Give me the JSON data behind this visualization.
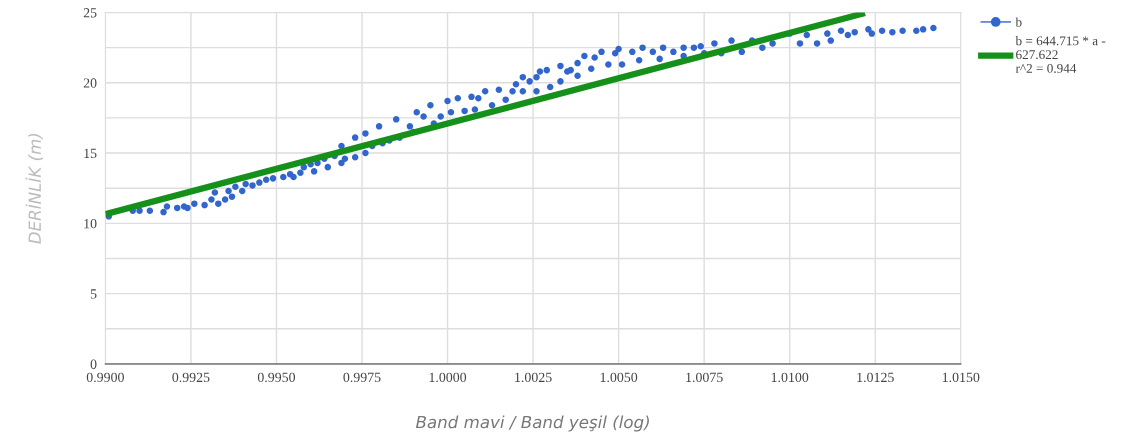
{
  "chart_data": {
    "type": "scatter",
    "xlabel": "Band mavi / Band yeşil (log)",
    "ylabel": "DERİNLİK (m)",
    "xlim": [
      0.99,
      1.015
    ],
    "xticks": [
      {
        "value": 0.99,
        "label": "0.9900"
      },
      {
        "value": 0.9925,
        "label": "0.9925"
      },
      {
        "value": 0.995,
        "label": "0.9950"
      },
      {
        "value": 0.9975,
        "label": "0.9975"
      },
      {
        "value": 1.0,
        "label": "1.0000"
      },
      {
        "value": 1.0025,
        "label": "1.0025"
      },
      {
        "value": 1.005,
        "label": "1.0050"
      },
      {
        "value": 1.0075,
        "label": "1.0075"
      },
      {
        "value": 1.01,
        "label": "1.0100"
      },
      {
        "value": 1.0125,
        "label": "1.0125"
      },
      {
        "value": 1.015,
        "label": "1.0150"
      }
    ],
    "ylim": [
      0,
      25
    ],
    "yticks": [
      0,
      {
        "value": 2.5,
        "label": null
      },
      5,
      {
        "value": 7.5,
        "label": null
      },
      10,
      {
        "value": 12.5,
        "label": null
      },
      15,
      {
        "value": 17.5,
        "label": null
      },
      20,
      {
        "value": 22.5,
        "label": null
      },
      25
    ],
    "grid": true,
    "legend": "top right",
    "marker": "circle",
    "series": [
      {
        "name": "b",
        "color": "#3366cc",
        "x": [
          0.9901,
          0.9908,
          0.991,
          0.9913,
          0.9917,
          0.9918,
          0.9921,
          0.9923,
          0.9924,
          0.9926,
          0.9929,
          0.9931,
          0.9932,
          0.9933,
          0.9935,
          0.9936,
          0.9937,
          0.9938,
          0.994,
          0.9941,
          0.9943,
          0.9945,
          0.9947,
          0.9949,
          0.9952,
          0.9954,
          0.9955,
          0.9957,
          0.9958,
          0.996,
          0.9961,
          0.9962,
          0.9964,
          0.9965,
          0.9967,
          0.9969,
          0.9969,
          0.997,
          0.9973,
          0.9973,
          0.9976,
          0.9976,
          0.9978,
          0.998,
          0.9981,
          0.9983,
          0.9985,
          0.9986,
          0.9989,
          0.999,
          0.9991,
          0.9993,
          0.9995,
          0.9996,
          0.9998,
          1.0,
          1.0001,
          1.0003,
          1.0005,
          1.0007,
          1.0008,
          1.0009,
          1.0011,
          1.0013,
          1.0015,
          1.0017,
          1.0019,
          1.002,
          1.0022,
          1.0022,
          1.0024,
          1.0026,
          1.0026,
          1.0027,
          1.0029,
          1.003,
          1.0033,
          1.0033,
          1.0035,
          1.0036,
          1.0038,
          1.0038,
          1.004,
          1.0042,
          1.0043,
          1.0045,
          1.0047,
          1.0049,
          1.005,
          1.0051,
          1.0054,
          1.0056,
          1.0057,
          1.006,
          1.0062,
          1.0063,
          1.0066,
          1.0069,
          1.0069,
          1.0072,
          1.0074,
          1.0075,
          1.0078,
          1.008,
          1.0083,
          1.0086,
          1.0089,
          1.0092,
          1.0095,
          1.01,
          1.0103,
          1.0105,
          1.0108,
          1.0111,
          1.0112,
          1.0115,
          1.0117,
          1.0119,
          1.0123,
          1.0124,
          1.0127,
          1.013,
          1.0133,
          1.0137,
          1.0139,
          1.0142
        ],
        "values": [
          10.5,
          10.9,
          10.9,
          10.9,
          10.8,
          11.2,
          11.1,
          11.2,
          11.1,
          11.4,
          11.3,
          11.7,
          12.2,
          11.4,
          11.7,
          12.3,
          11.9,
          12.6,
          12.3,
          12.8,
          12.7,
          12.9,
          13.1,
          13.2,
          13.3,
          13.5,
          13.3,
          13.6,
          14.0,
          14.2,
          13.7,
          14.3,
          14.6,
          14.0,
          14.8,
          14.3,
          15.5,
          14.6,
          16.1,
          14.7,
          15.0,
          16.4,
          15.5,
          16.9,
          15.7,
          15.9,
          17.4,
          16.1,
          16.9,
          16.5,
          17.9,
          17.6,
          18.4,
          17.1,
          17.6,
          18.7,
          17.9,
          18.9,
          18.0,
          19.0,
          18.1,
          18.9,
          19.4,
          18.4,
          19.5,
          18.8,
          19.4,
          19.9,
          19.4,
          20.4,
          20.1,
          20.4,
          19.4,
          20.8,
          20.9,
          19.7,
          21.2,
          20.1,
          20.8,
          20.9,
          21.4,
          20.5,
          21.9,
          21.0,
          21.8,
          22.2,
          21.3,
          22.1,
          22.4,
          21.3,
          22.2,
          21.6,
          22.5,
          22.2,
          21.7,
          22.5,
          22.2,
          21.9,
          22.5,
          22.5,
          22.6,
          22.1,
          22.8,
          22.1,
          23.0,
          22.2,
          23.0,
          22.5,
          22.8,
          23.5,
          22.8,
          23.4,
          22.8,
          23.5,
          23.0,
          23.7,
          23.4,
          23.6,
          23.8,
          23.5,
          23.7,
          23.6,
          23.7,
          23.7,
          23.8,
          23.9
        ]
      },
      {
        "name": "b = 644.715 * a -\n627.622\nr^2 = 0.944",
        "type": "line",
        "color": "#15901a",
        "marker": "none",
        "x": [
          0.99,
          1.0122
        ],
        "values": [
          10.65,
          24.96
        ]
      }
    ]
  }
}
